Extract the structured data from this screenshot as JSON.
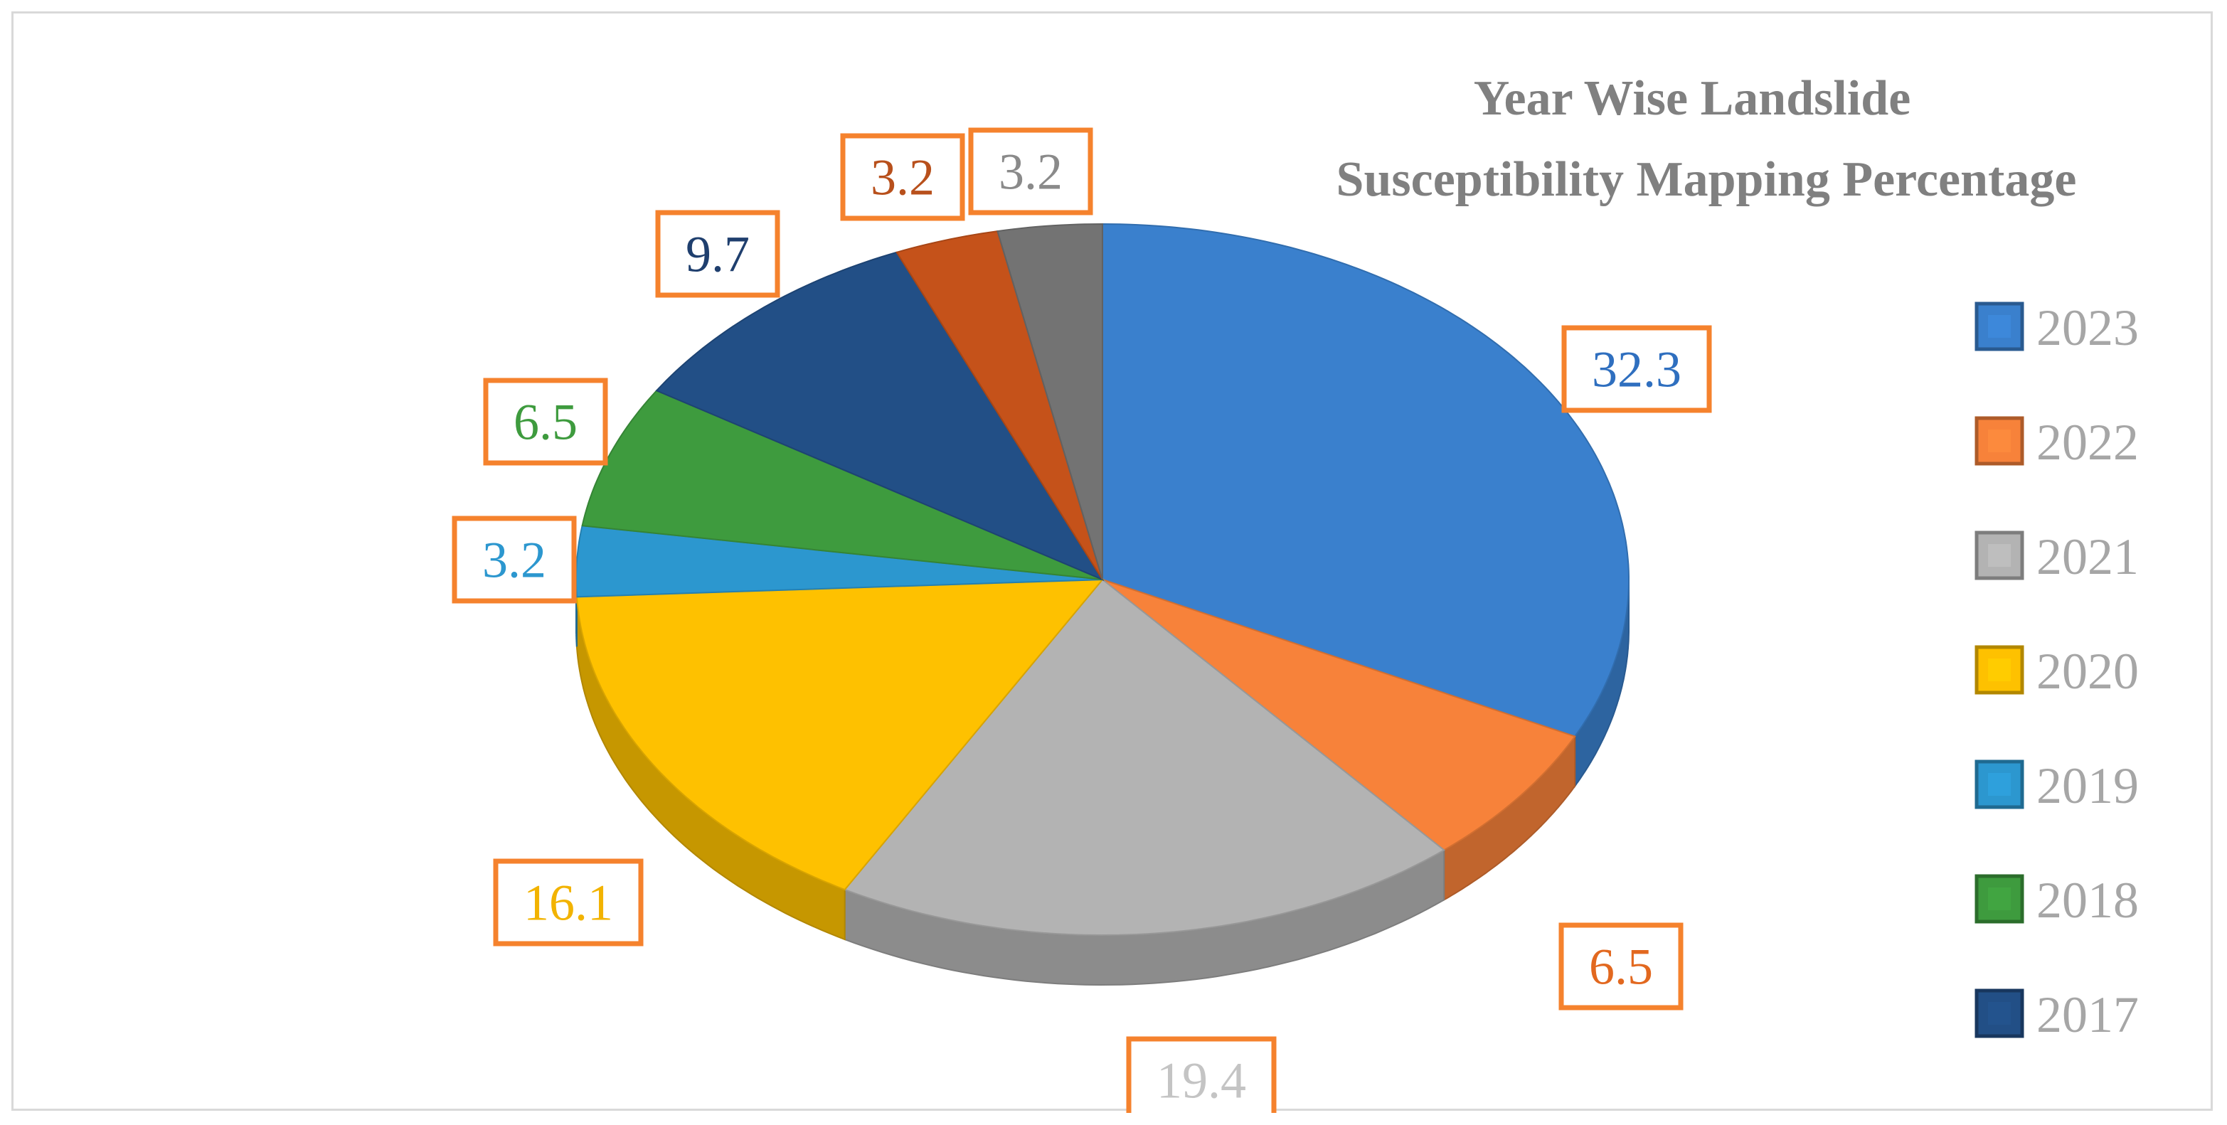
{
  "chart_data": {
    "type": "pie",
    "title": "Year Wise Landslide Susceptibility Mapping Percentage",
    "title_lines": [
      "Year Wise Landslide",
      "Susceptibility Mapping Percentage"
    ],
    "legend_position": "right",
    "label_border_color": "#f5822d",
    "slices": [
      {
        "label": "2023",
        "value": 32.3,
        "value_label": "32.3",
        "color": "#3a80cd",
        "label_color": "#2f6fbf"
      },
      {
        "label": "2022",
        "value": 6.5,
        "value_label": "6.5",
        "color": "#f7823a",
        "label_color": "#e2681f"
      },
      {
        "label": "2021",
        "value": 19.4,
        "value_label": "19.4",
        "color": "#b3b3b3",
        "label_color": "#c4c4c4"
      },
      {
        "label": "2020",
        "value": 16.1,
        "value_label": "16.1",
        "color": "#fec100",
        "label_color": "#f2b300"
      },
      {
        "label": "2019",
        "value": 3.2,
        "value_label": "3.2",
        "color": "#2c97cf",
        "label_color": "#2c97cf"
      },
      {
        "label": "2018",
        "value": 6.5,
        "value_label": "6.5",
        "color": "#3e9b3e",
        "label_color": "#3e9b3e"
      },
      {
        "label": "2017",
        "value": 9.7,
        "value_label": "9.7",
        "color": "#224f86",
        "label_color": "#1f3f6e"
      },
      {
        "label": "2022",
        "value": 3.2,
        "value_label": "3.2",
        "color": "#c5521a",
        "label_color": "#b8501c"
      },
      {
        "label": "2021",
        "value": 3.2,
        "value_label": "3.2",
        "color": "#737373",
        "label_color": "#8a8a8a"
      }
    ],
    "legend": [
      {
        "label": "2023",
        "color": "#3a80cd"
      },
      {
        "label": "2022",
        "color": "#f7823a"
      },
      {
        "label": "2021",
        "color": "#b3b3b3"
      },
      {
        "label": "2020",
        "color": "#fec100"
      },
      {
        "label": "2019",
        "color": "#2c97cf"
      },
      {
        "label": "2018",
        "color": "#3e9b3e"
      },
      {
        "label": "2017",
        "color": "#224f86"
      }
    ]
  }
}
